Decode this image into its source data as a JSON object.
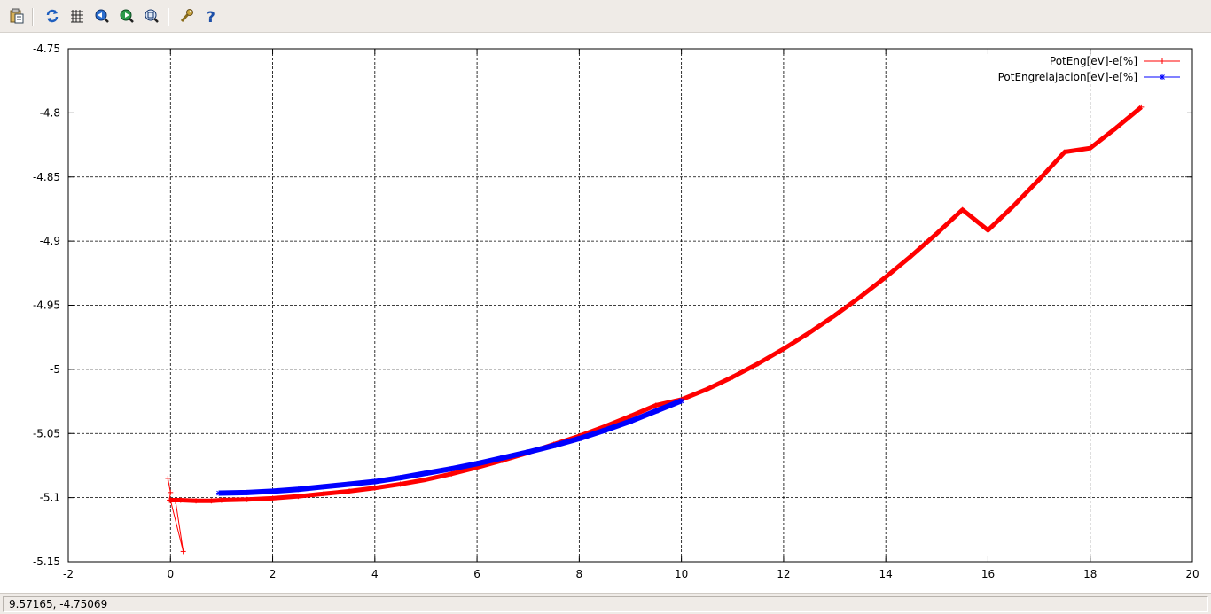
{
  "toolbar": {
    "buttons": [
      {
        "name": "copy-to-clipboard-icon"
      },
      {
        "name": "replot-icon"
      },
      {
        "name": "grid-icon"
      },
      {
        "name": "previous-zoom-icon"
      },
      {
        "name": "next-zoom-icon"
      },
      {
        "name": "autoscale-icon"
      },
      {
        "name": "settings-icon"
      },
      {
        "name": "help-icon"
      }
    ]
  },
  "status": {
    "coordinates": "9.57165, -4.75069"
  },
  "colors": {
    "series1": "#ff0000",
    "series2": "#0000ff",
    "grid": "#000000"
  },
  "chart_data": {
    "type": "line",
    "title": "",
    "xlabel": "",
    "ylabel": "",
    "xlim": [
      -2,
      20
    ],
    "ylim": [
      -5.15,
      -4.75
    ],
    "x_ticks": [
      "-2",
      "0",
      "2",
      "4",
      "6",
      "8",
      "10",
      "12",
      "14",
      "16",
      "18",
      "20"
    ],
    "y_ticks": [
      "-4.75",
      "-4.8",
      "-4.85",
      "-4.9",
      "-4.95",
      "-5",
      "-5.05",
      "-5.1",
      "-5.15"
    ],
    "grid": true,
    "legend_position": "top-right",
    "series": [
      {
        "name": "PotEng[eV]-e[%]",
        "color": "#ff0000",
        "marker": "+",
        "points": [
          [
            -0.05,
            -5.085
          ],
          [
            0.0,
            -5.096
          ],
          [
            -0.02,
            -5.102
          ],
          [
            0.1,
            -5.103
          ],
          [
            0.25,
            -5.142
          ],
          [
            0.0,
            -5.102
          ],
          [
            0.2,
            -5.102
          ],
          [
            0.5,
            -5.1025
          ],
          [
            0.8,
            -5.1025
          ],
          [
            1.0,
            -5.102
          ],
          [
            1.5,
            -5.1015
          ],
          [
            2.0,
            -5.1005
          ],
          [
            2.5,
            -5.099
          ],
          [
            3.0,
            -5.097
          ],
          [
            3.5,
            -5.095
          ],
          [
            4.0,
            -5.0925
          ],
          [
            4.5,
            -5.0895
          ],
          [
            5.0,
            -5.086
          ],
          [
            5.5,
            -5.0815
          ],
          [
            6.0,
            -5.0765
          ],
          [
            6.5,
            -5.071
          ],
          [
            7.0,
            -5.065
          ],
          [
            7.5,
            -5.0585
          ],
          [
            8.0,
            -5.052
          ],
          [
            8.5,
            -5.0445
          ],
          [
            9.0,
            -5.0365
          ],
          [
            9.5,
            -5.028
          ],
          [
            10.0,
            -5.0235
          ],
          [
            10.5,
            -5.0155
          ],
          [
            11.0,
            -5.006
          ],
          [
            11.5,
            -4.9955
          ],
          [
            12.0,
            -4.984
          ],
          [
            12.5,
            -4.9715
          ],
          [
            13.0,
            -4.958
          ],
          [
            13.5,
            -4.9435
          ],
          [
            14.0,
            -4.928
          ],
          [
            14.5,
            -4.9115
          ],
          [
            15.0,
            -4.894
          ],
          [
            15.5,
            -4.8755
          ],
          [
            16.0,
            -4.8915
          ],
          [
            16.5,
            -4.8725
          ],
          [
            17.0,
            -4.852
          ],
          [
            17.5,
            -4.8305
          ],
          [
            18.0,
            -4.8275
          ],
          [
            18.5,
            -4.812
          ],
          [
            19.0,
            -4.7955
          ]
        ]
      },
      {
        "name": "PotEngrelajacion[eV]-e[%]",
        "color": "#0000ff",
        "marker": "*",
        "points": [
          [
            0.95,
            -5.0965
          ],
          [
            1.5,
            -5.096
          ],
          [
            2.0,
            -5.095
          ],
          [
            2.5,
            -5.0935
          ],
          [
            3.0,
            -5.0915
          ],
          [
            3.5,
            -5.0895
          ],
          [
            4.0,
            -5.0875
          ],
          [
            4.5,
            -5.0845
          ],
          [
            5.0,
            -5.081
          ],
          [
            5.5,
            -5.0775
          ],
          [
            6.0,
            -5.0735
          ],
          [
            6.5,
            -5.069
          ],
          [
            7.0,
            -5.0645
          ],
          [
            7.5,
            -5.0595
          ],
          [
            8.0,
            -5.054
          ],
          [
            8.5,
            -5.0475
          ],
          [
            9.0,
            -5.0405
          ],
          [
            9.5,
            -5.0325
          ],
          [
            10.0,
            -5.0245
          ]
        ]
      }
    ]
  }
}
